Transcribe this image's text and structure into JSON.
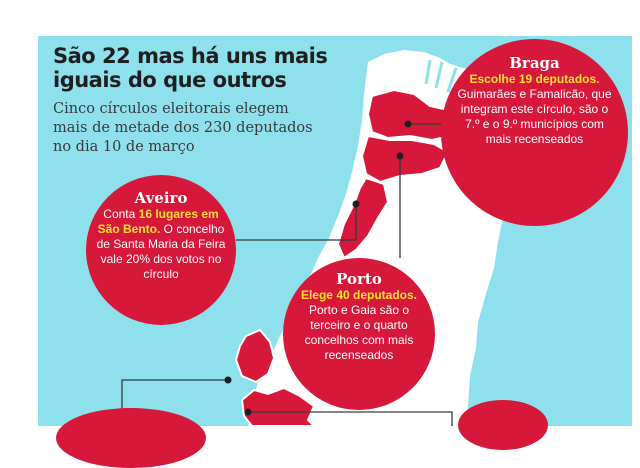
{
  "title": "São 22 mas há uns mais iguais do que outros",
  "subtitle": "Cinco círculos eleitorais elegem mais de metade dos 230 deputados no dia 10 de março",
  "colors": {
    "background_panel": "#8ee0ec",
    "land": "#ffffff",
    "highlight_district": "#d6183a",
    "callout_bubble": "#d6183a",
    "highlight_text": "#ffe033",
    "leader_line": "#3a3a3a"
  },
  "callouts": {
    "braga": {
      "name": "Braga",
      "highlight": "Escolhe 19 deputados.",
      "text": " Guimarães e Famalicão, que integram este círculo, são o 7.º e o 9.º municípios com mais recenseados"
    },
    "aveiro": {
      "name": "Aveiro",
      "lead": "Conta ",
      "highlight": "16 lugares em São Bento.",
      "text": " O concelho de Santa Maria da Feira vale 20% dos votos no círculo"
    },
    "porto": {
      "name": "Porto",
      "highlight": "Elege 40 deputados.",
      "text": " Porto e Gaia são o terceiro e o quarto concelhos com mais recenseados"
    }
  }
}
